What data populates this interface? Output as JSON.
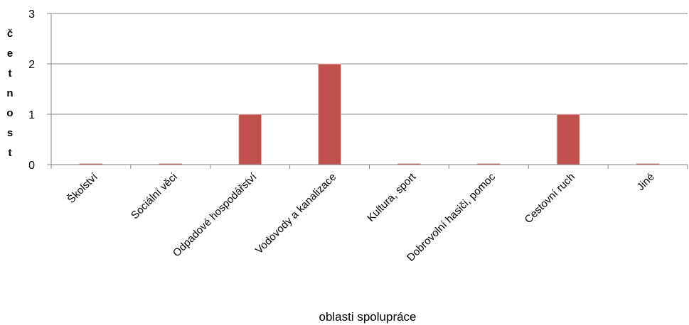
{
  "chart_data": {
    "type": "bar",
    "categories": [
      "Školství",
      "Sociální věci",
      "Odpadové hospodářství",
      "Vodovody a kanalizace",
      "Kultura, sport",
      "Dobrovolní hasiči, pomoc",
      "Cestovní ruch",
      "Jiné"
    ],
    "values": [
      0,
      0,
      1,
      2,
      0,
      0,
      1,
      0
    ],
    "title": "",
    "xlabel": "oblasti spolupráce",
    "ylabel": "četnost",
    "ylim": [
      0,
      3
    ],
    "yticks": [
      "0",
      "1",
      "2",
      "3"
    ],
    "grid": true,
    "legend": "none",
    "bar_color": "#c0504d"
  }
}
